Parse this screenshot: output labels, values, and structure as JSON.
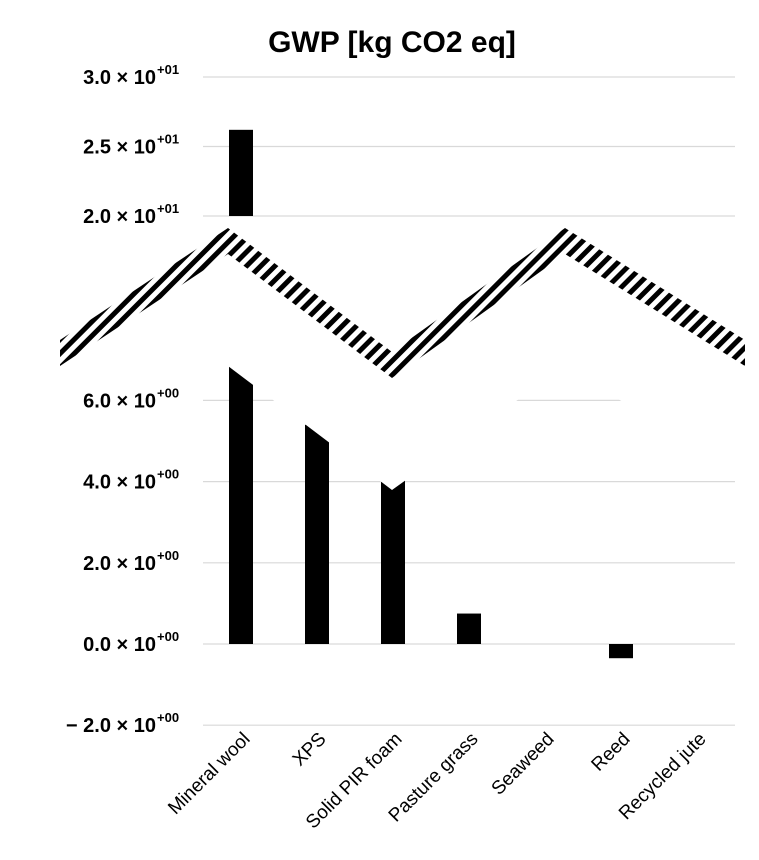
{
  "chart_data": {
    "type": "bar",
    "title": "GWP [kg CO2 eq]",
    "xlabel": "",
    "ylabel": "",
    "categories": [
      "Mineral wool",
      "XPS",
      "Solid PIR foam",
      "Pasture grass",
      "Seaweed",
      "Reed",
      "Recycled jute"
    ],
    "values": [
      26.2,
      5.4,
      4.7,
      0.75,
      0.0,
      -0.35,
      0.0
    ],
    "axis_break": {
      "lower_range": [
        -2.0,
        7.0
      ],
      "upper_range": [
        20.0,
        30.0
      ],
      "style": "hatched zigzag"
    },
    "y_ticks": [
      {
        "value": -2.0,
        "mantissa": "− 2.0 × 10",
        "exponent": "+00"
      },
      {
        "value": 0.0,
        "mantissa": "0.0 × 10",
        "exponent": "+00"
      },
      {
        "value": 2.0,
        "mantissa": "2.0 × 10",
        "exponent": "+00"
      },
      {
        "value": 4.0,
        "mantissa": "4.0 × 10",
        "exponent": "+00"
      },
      {
        "value": 6.0,
        "mantissa": "6.0 × 10",
        "exponent": "+00"
      },
      {
        "value": 20.0,
        "mantissa": "2.0 × 10",
        "exponent": "+01"
      },
      {
        "value": 25.0,
        "mantissa": "2.5 × 10",
        "exponent": "+01"
      },
      {
        "value": 30.0,
        "mantissa": "3.0 × 10",
        "exponent": "+01"
      }
    ],
    "gridlines": true,
    "legend": "none",
    "bar_color": "#000000",
    "grid_color": "#d9d9d9"
  }
}
